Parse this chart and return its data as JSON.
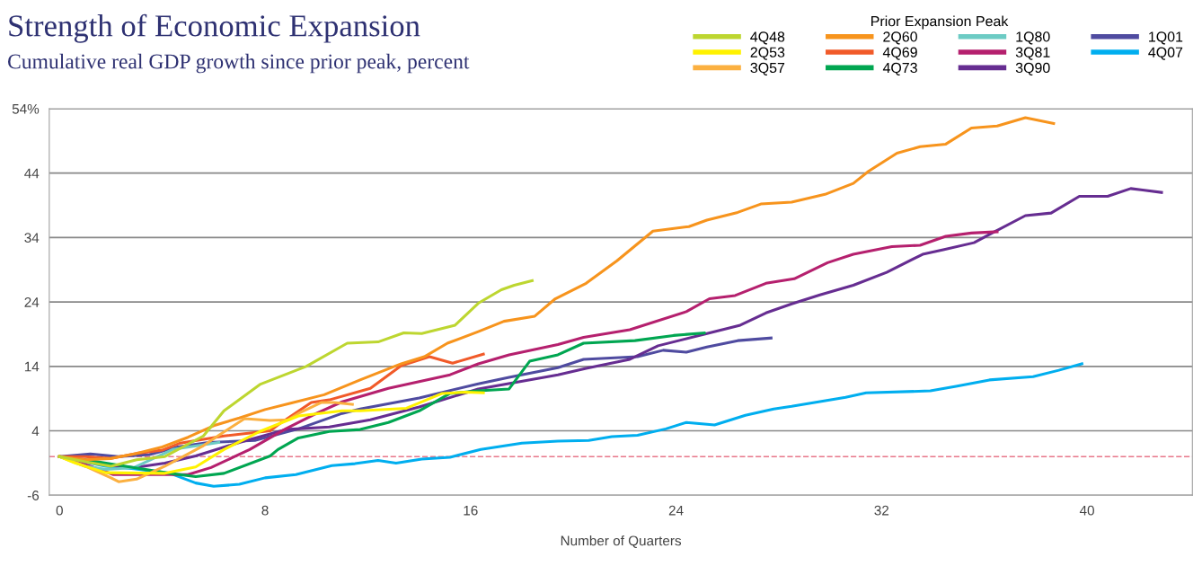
{
  "chart_data": {
    "type": "line",
    "title": "Strength of Economic Expansion",
    "subtitle": "Cumulative real GDP growth since prior peak, percent",
    "xlabel": "Number of Quarters",
    "legend_title": "Prior Expansion Peak",
    "legend": "top right",
    "grid": "y",
    "marker": "none",
    "line_style": "solid",
    "xlim": [
      -0.4,
      44.1
    ],
    "xticks": [
      0,
      8,
      16,
      24,
      32,
      40
    ],
    "ylim": [
      -6,
      54
    ],
    "yticks": [
      -6,
      4,
      14,
      24,
      34,
      {
        "value": 44,
        "label": "44"
      },
      {
        "value": 54,
        "label": "54%"
      }
    ],
    "ref_lines": [
      {
        "axis": "y",
        "value": 0,
        "label": null,
        "color": "#e8778a",
        "line_style": "dashed"
      }
    ],
    "series": [
      {
        "name": "4Q48",
        "color": "#bdd630",
        "x": [
          0,
          1,
          2,
          3,
          4.1,
          5.6,
          6.4,
          7.8,
          9.6,
          11.2,
          12.4,
          13.4,
          14.1,
          15.4,
          16.3,
          17.2,
          17.7,
          18.4
        ],
        "values": [
          0,
          -0.8,
          -1.5,
          -0.5,
          0,
          3.2,
          7.1,
          11.2,
          14,
          17.6,
          17.8,
          19.2,
          19.1,
          20.4,
          23.8,
          25.9,
          26.6,
          27.3
        ]
      },
      {
        "name": "2Q53",
        "color": "#fff200",
        "x": [
          0,
          0.6,
          1.8,
          4.1,
          5.3,
          6.4,
          7.8,
          9.3,
          11,
          11.7,
          13.5,
          14.9,
          15.8,
          16.5
        ],
        "values": [
          0,
          -1,
          -2.5,
          -2.6,
          -1.6,
          1.1,
          3.9,
          6.3,
          7.1,
          7.1,
          7.5,
          9.8,
          10,
          9.9
        ]
      },
      {
        "name": "3Q57",
        "color": "#fbb040",
        "x": [
          0,
          1,
          2,
          2.3,
          3,
          4.1,
          5.6,
          6.2,
          7.2,
          8.2,
          8.9,
          9.3,
          10.2,
          10.7,
          11.4
        ],
        "values": [
          0,
          -1.5,
          -3.3,
          -3.9,
          -3.5,
          -1.5,
          1.7,
          3.3,
          5.9,
          5.6,
          5.7,
          6.7,
          8.4,
          8.4,
          8.1
        ]
      },
      {
        "name": "2Q60",
        "color": "#f7941d",
        "x": [
          0,
          1,
          2,
          3,
          4,
          5,
          6,
          7,
          8,
          9,
          10.3,
          11.7,
          13.3,
          14.2,
          15.1,
          16.3,
          17.3,
          18.5,
          19.3,
          20.5,
          21.7,
          23.1,
          24.5,
          25.2,
          26.4,
          27.3,
          28.5,
          29.8,
          30.9,
          31.5,
          32.6,
          33.5,
          34.5,
          35.5,
          36.5,
          37.6,
          38.7
        ],
        "values": [
          0,
          -0.5,
          -0.3,
          0.5,
          1.5,
          3,
          4.8,
          6,
          7.3,
          8.3,
          9.6,
          11.9,
          14.4,
          15.5,
          17.6,
          19.4,
          21,
          21.8,
          24.5,
          26.9,
          30.4,
          35,
          35.7,
          36.7,
          37.9,
          39.2,
          39.5,
          40.7,
          42.4,
          44.3,
          47.1,
          48.1,
          48.5,
          51,
          51.3,
          52.6,
          51.7
        ]
      },
      {
        "name": "4Q69",
        "color": "#f15a29",
        "x": [
          0,
          1,
          2,
          3,
          4,
          4.7,
          6.4,
          8.2,
          8.5,
          9.8,
          10.5,
          12.1,
          13.3,
          14.4,
          15.3,
          16.5
        ],
        "values": [
          0,
          0,
          -0.3,
          0.5,
          1,
          2.1,
          3.2,
          4,
          4.9,
          8.4,
          8.8,
          10.6,
          14.1,
          15.5,
          14.5,
          15.9
        ]
      },
      {
        "name": "4Q73",
        "color": "#00a651",
        "x": [
          0,
          1,
          2.9,
          4.3,
          5.3,
          6.4,
          8.2,
          8.5,
          9.3,
          10.5,
          11.7,
          12.8,
          14,
          15.2,
          16.3,
          17.5,
          18.3,
          19.4,
          20.4,
          22.4,
          23.9,
          25.1
        ],
        "values": [
          0,
          -0.5,
          -1.7,
          -2.6,
          -3.1,
          -2.6,
          0.1,
          1.1,
          2.9,
          3.9,
          4.2,
          5.3,
          7.1,
          9.8,
          10.2,
          10.5,
          14.8,
          15.8,
          17.6,
          18,
          18.8,
          19.2
        ]
      },
      {
        "name": "1Q80",
        "color": "#6ccbc4",
        "x": [
          0,
          1,
          1.8,
          2.9,
          4.4,
          6.2
        ],
        "values": [
          0,
          -1.5,
          -2,
          -1.7,
          1.1,
          2.2
        ]
      },
      {
        "name": "3Q81",
        "color": "#b5206e",
        "x": [
          0,
          1.2,
          2.1,
          3.5,
          5,
          5.9,
          7.4,
          8.8,
          10,
          11,
          12.8,
          15.2,
          16.3,
          17.5,
          19.4,
          20.4,
          22.2,
          24.4,
          25.3,
          26.3,
          27.5,
          28.6,
          29.9,
          30.9,
          32.4,
          33.5,
          34.5,
          35.5,
          36.5
        ],
        "values": [
          0,
          -1.5,
          -2.8,
          -2.8,
          -2.8,
          -1.7,
          1.1,
          4.3,
          6.7,
          8.5,
          10.6,
          12.7,
          14.4,
          15.8,
          17.4,
          18.5,
          19.7,
          22.5,
          24.5,
          25,
          26.9,
          27.6,
          30.1,
          31.4,
          32.6,
          32.8,
          34.2,
          34.7,
          34.9
        ]
      },
      {
        "name": "3Q90",
        "color": "#662d91",
        "x": [
          0,
          1.8,
          2.9,
          4.1,
          5.3,
          7,
          8.8,
          10.5,
          12.1,
          14,
          16.3,
          19.4,
          20.5,
          22.2,
          23.3,
          25.1,
          26.5,
          27.5,
          28.5,
          29.6,
          30.9,
          32.2,
          33.6,
          34.4,
          35.6,
          36.4,
          37.6,
          38.6,
          39.7,
          40.8,
          41.7,
          42.9
        ],
        "values": [
          0,
          -1.3,
          -1.7,
          -1,
          0.1,
          2.2,
          4.2,
          4.6,
          5.7,
          7.7,
          10.5,
          12.7,
          13.7,
          15.1,
          17.2,
          19,
          20.4,
          22.3,
          23.7,
          25.1,
          26.6,
          28.6,
          31.4,
          32.1,
          33.2,
          34.9,
          37.4,
          37.8,
          40.4,
          40.4,
          41.6,
          41
        ]
      },
      {
        "name": "1Q01",
        "color": "#4f4ba0",
        "x": [
          0,
          1.2,
          2.3,
          3.5,
          4.6,
          5.8,
          7.6,
          9.3,
          11,
          11.7,
          14,
          16.3,
          17.5,
          19.4,
          20.4,
          22.5,
          23.5,
          24.4,
          25.2,
          26.4,
          27.7
        ],
        "values": [
          0,
          0.4,
          0,
          0.3,
          1.5,
          2.2,
          2.5,
          4.3,
          6.7,
          7.4,
          9.1,
          11.3,
          12.3,
          13.8,
          15.1,
          15.5,
          16.5,
          16.2,
          17,
          18,
          18.4
        ]
      },
      {
        "name": "4Q07",
        "color": "#00aeef",
        "x": [
          0,
          1.8,
          2.9,
          4.3,
          5.3,
          6,
          7,
          8,
          9.2,
          10.6,
          11.5,
          12.4,
          13.1,
          14.1,
          15.2,
          16.4,
          18,
          19.4,
          20.6,
          21.5,
          22.5,
          23.6,
          24.4,
          25.5,
          26.7,
          27.8,
          28.5,
          30.6,
          31.4,
          33.9,
          34.9,
          36.2,
          37.9,
          38.9,
          39.8
        ],
        "values": [
          0,
          -1.5,
          -1.9,
          -2.6,
          -4.1,
          -4.6,
          -4.3,
          -3.3,
          -2.8,
          -1.4,
          -1.1,
          -0.6,
          -1,
          -0.4,
          -0.1,
          1.1,
          2.1,
          2.4,
          2.5,
          3.1,
          3.3,
          4.3,
          5.3,
          4.9,
          6.4,
          7.4,
          7.8,
          9.2,
          9.9,
          10.2,
          10.9,
          11.9,
          12.4,
          13.4,
          14.4
        ]
      }
    ]
  }
}
